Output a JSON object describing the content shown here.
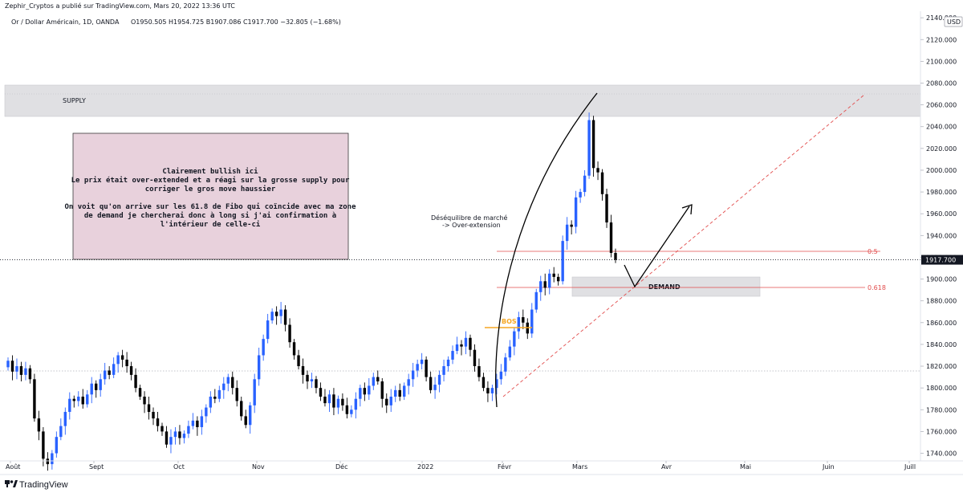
{
  "header": {
    "published": "Zephir_Cryptos a publié sur TradingView.com, Mars 20, 2022 13:36 UTC",
    "symbol": "Or / Dollar Américain, 1D, OANDA",
    "ohlc": "O1950.505  H1954.725  B1907.086  C1917.700  −32.805 (−1.68%)",
    "currency": "USD"
  },
  "footer": {
    "brand": "TradingView"
  },
  "colors": {
    "bull": "#2962ff",
    "bear": "#000000",
    "fibo": "#e24c4c",
    "bos": "#f5a623",
    "zone": "#e0e0e3",
    "note_bg": "#e8d1dc",
    "price_tag": "#131722"
  },
  "chart_data": {
    "type": "candlestick",
    "ylim": [
      1733,
      2146
    ],
    "yticks": [
      1740,
      1760,
      1780,
      1800,
      1820,
      1840,
      1860,
      1880,
      1900,
      1920,
      1940,
      1960,
      1980,
      2000,
      2020,
      2040,
      2060,
      2080,
      2100,
      2120,
      2140
    ],
    "xlabels": [
      "Août",
      "Sept",
      "Oct",
      "Nov",
      "Déc",
      "2022",
      "Févr",
      "Mars",
      "Avr",
      "Mai",
      "Juin",
      "Juill"
    ],
    "last_price": 1917.7,
    "last_price_label": "1917.700",
    "closes": [
      1825,
      1815,
      1820,
      1812,
      1818,
      1808,
      1772,
      1760,
      1735,
      1730,
      1740,
      1755,
      1765,
      1778,
      1790,
      1788,
      1792,
      1785,
      1794,
      1804,
      1798,
      1808,
      1816,
      1812,
      1822,
      1830,
      1826,
      1820,
      1812,
      1800,
      1792,
      1785,
      1778,
      1772,
      1765,
      1760,
      1748,
      1755,
      1760,
      1754,
      1758,
      1765,
      1770,
      1764,
      1774,
      1782,
      1792,
      1790,
      1798,
      1804,
      1810,
      1800,
      1788,
      1774,
      1766,
      1784,
      1808,
      1830,
      1845,
      1862,
      1870,
      1866,
      1872,
      1858,
      1842,
      1830,
      1820,
      1812,
      1806,
      1808,
      1800,
      1792,
      1786,
      1794,
      1782,
      1790,
      1784,
      1776,
      1780,
      1790,
      1800,
      1794,
      1802,
      1810,
      1806,
      1790,
      1784,
      1792,
      1798,
      1792,
      1802,
      1808,
      1816,
      1822,
      1826,
      1810,
      1798,
      1803,
      1812,
      1820,
      1826,
      1834,
      1840,
      1838,
      1846,
      1835,
      1820,
      1810,
      1800,
      1795,
      1800,
      1808,
      1815,
      1828,
      1838,
      1852,
      1865,
      1860,
      1850,
      1872,
      1888,
      1898,
      1892,
      1905,
      1902,
      1898,
      1935,
      1950,
      1948,
      1975,
      1980,
      1995,
      2046,
      2002,
      1998,
      1978,
      1952,
      1924,
      1917.7
    ],
    "annotations": {
      "supply_label": "SUPPLY",
      "demand_label": "DEMAND",
      "bos_label": "BOS",
      "fib_05_label": "0.5",
      "fib_0618_label": "0.618",
      "imbalance_line1": "Déséquilibre de marché",
      "imbalance_line2": "-> Over-extension",
      "note_lines": [
        "Clairement bullish ici",
        "Le prix était over-extended et a réagi sur la grosse supply pour",
        "corriger le gros move haussier",
        "",
        "On voit qu'on arrive sur les 61.8 de Fibo qui coïncide avec ma zone",
        "de demand je chercherai donc à long si j'ai confirmation à",
        "l'intérieur de celle-ci"
      ]
    }
  }
}
